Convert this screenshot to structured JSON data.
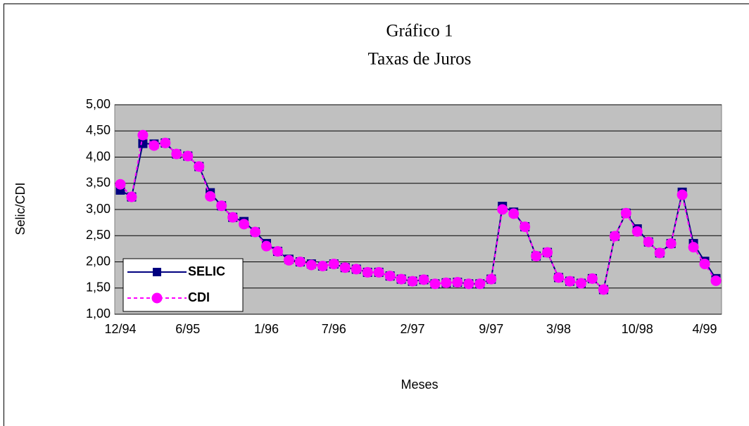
{
  "chart_data": {
    "type": "line",
    "title": "Gráfico 1",
    "subtitle": "Taxas de Juros",
    "x_label": "Meses",
    "y_label": "Selic/CDI",
    "categories": [
      "12/94",
      null,
      null,
      null,
      null,
      null,
      "6/95",
      null,
      null,
      null,
      null,
      null,
      null,
      "1/96",
      null,
      null,
      null,
      null,
      null,
      "7/96",
      null,
      null,
      null,
      null,
      null,
      null,
      "2/97",
      null,
      null,
      null,
      null,
      null,
      null,
      "9/97",
      null,
      null,
      null,
      null,
      null,
      "3/98",
      null,
      null,
      null,
      null,
      null,
      null,
      "10/98",
      null,
      null,
      null,
      null,
      null,
      "4/99",
      null
    ],
    "series": [
      {
        "name": "SELIC",
        "color": "#000080",
        "marker": "square",
        "values": [
          3.37,
          3.24,
          4.26,
          4.25,
          4.27,
          4.06,
          4.02,
          3.82,
          3.32,
          3.07,
          2.85,
          2.77,
          2.57,
          2.35,
          2.2,
          2.05,
          2.0,
          1.96,
          1.92,
          1.96,
          1.89,
          1.86,
          1.8,
          1.8,
          1.73,
          1.67,
          1.63,
          1.66,
          1.58,
          1.6,
          1.61,
          1.58,
          1.58,
          1.67,
          3.06,
          2.95,
          2.67,
          2.11,
          2.18,
          1.7,
          1.63,
          1.59,
          1.68,
          1.47,
          2.49,
          2.93,
          2.63,
          2.38,
          2.17,
          2.35,
          3.33,
          2.35,
          2.01,
          1.68
        ]
      },
      {
        "name": "CDI",
        "color": "#ff00ff",
        "marker": "circle",
        "dashed": true,
        "values": [
          3.48,
          3.24,
          4.42,
          4.22,
          4.27,
          4.06,
          4.02,
          3.82,
          3.25,
          3.07,
          2.85,
          2.72,
          2.57,
          2.3,
          2.2,
          2.03,
          2.0,
          1.94,
          1.92,
          1.96,
          1.89,
          1.86,
          1.8,
          1.8,
          1.73,
          1.67,
          1.63,
          1.66,
          1.58,
          1.6,
          1.61,
          1.58,
          1.58,
          1.67,
          3.0,
          2.92,
          2.67,
          2.11,
          2.18,
          1.7,
          1.63,
          1.59,
          1.68,
          1.47,
          2.49,
          2.93,
          2.58,
          2.38,
          2.17,
          2.35,
          3.28,
          2.28,
          1.96,
          1.64
        ]
      }
    ],
    "ylim": [
      1,
      5
    ],
    "yticks": [
      {
        "value": 1,
        "label": "1,00"
      },
      {
        "value": 1.5,
        "label": "1,50"
      },
      {
        "value": 2,
        "label": "2,00"
      },
      {
        "value": 2.5,
        "label": "2,50"
      },
      {
        "value": 3,
        "label": "3,00"
      },
      {
        "value": 3.5,
        "label": "3,50"
      },
      {
        "value": 4,
        "label": "4,00"
      },
      {
        "value": 4.5,
        "label": "4,50"
      },
      {
        "value": 5,
        "label": "5,00"
      }
    ],
    "grid": true,
    "legend": "lower left",
    "plot_background": "#c0c0c0"
  }
}
